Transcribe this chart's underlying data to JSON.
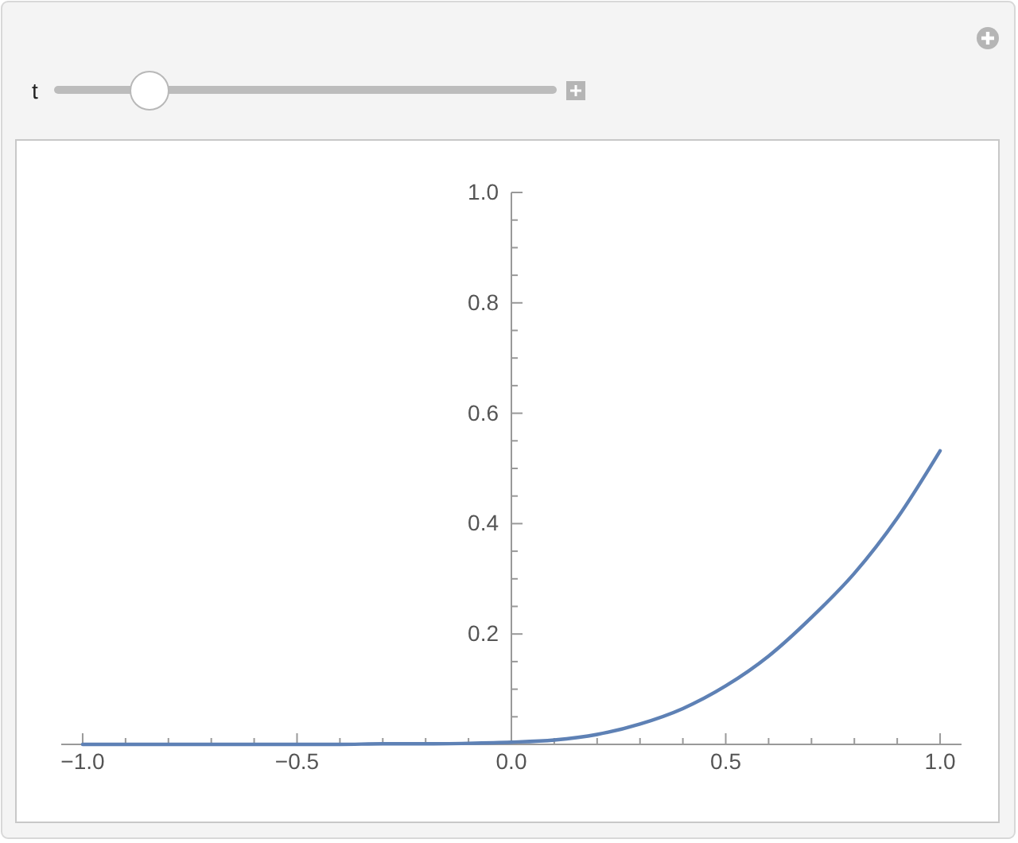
{
  "chart_data": {
    "type": "line",
    "annotations": [
      "t"
    ],
    "x": [
      -1,
      -0.8,
      -0.6,
      -0.4,
      -0.3,
      -0.2,
      -0.1,
      0,
      0.1,
      0.2,
      0.3,
      0.4,
      0.5,
      0.6,
      0.7,
      0.8,
      0.9,
      1
    ],
    "series": [
      {
        "color": "#5e81b5",
        "values": [
          0,
          0,
          0,
          0,
          0.001,
          0.001,
          0.002,
          0.004,
          0.008,
          0.018,
          0.037,
          0.065,
          0.106,
          0.16,
          0.23,
          0.31,
          0.41,
          0.532
        ]
      }
    ],
    "xlim": [
      -1.05,
      1.05
    ],
    "ylim": [
      0,
      1
    ],
    "xticks": [
      {
        "value": -1,
        "label": "−1.0"
      },
      {
        "value": -0.9,
        "label": null
      },
      {
        "value": -0.8,
        "label": null
      },
      {
        "value": -0.7,
        "label": null
      },
      {
        "value": -0.6,
        "label": null
      },
      {
        "value": -0.5,
        "label": "−0.5"
      },
      {
        "value": -0.4,
        "label": null
      },
      {
        "value": -0.3,
        "label": null
      },
      {
        "value": -0.2,
        "label": null
      },
      {
        "value": -0.1,
        "label": null
      },
      {
        "value": 0,
        "label": "0.0"
      },
      {
        "value": 0.1,
        "label": null
      },
      {
        "value": 0.2,
        "label": null
      },
      {
        "value": 0.3,
        "label": null
      },
      {
        "value": 0.4,
        "label": null
      },
      {
        "value": 0.5,
        "label": "0.5"
      },
      {
        "value": 0.6,
        "label": null
      },
      {
        "value": 0.7,
        "label": null
      },
      {
        "value": 0.8,
        "label": null
      },
      {
        "value": 0.9,
        "label": null
      },
      {
        "value": 1,
        "label": "1.0"
      }
    ],
    "yticks": [
      {
        "value": 0.05,
        "label": null
      },
      {
        "value": 0.1,
        "label": null
      },
      {
        "value": 0.15,
        "label": null
      },
      {
        "value": 0.2,
        "label": "0.2"
      },
      {
        "value": 0.25,
        "label": null
      },
      {
        "value": 0.3,
        "label": null
      },
      {
        "value": 0.35,
        "label": null
      },
      {
        "value": 0.4,
        "label": "0.4"
      },
      {
        "value": 0.45,
        "label": null
      },
      {
        "value": 0.5,
        "label": null
      },
      {
        "value": 0.55,
        "label": null
      },
      {
        "value": 0.6,
        "label": "0.6"
      },
      {
        "value": 0.65,
        "label": null
      },
      {
        "value": 0.7,
        "label": null
      },
      {
        "value": 0.75,
        "label": null
      },
      {
        "value": 0.8,
        "label": "0.8"
      },
      {
        "value": 0.85,
        "label": null
      },
      {
        "value": 0.9,
        "label": null
      },
      {
        "value": 0.95,
        "label": null
      },
      {
        "value": 1,
        "label": "1.0"
      }
    ],
    "marker": "none",
    "line_style": "solid"
  }
}
